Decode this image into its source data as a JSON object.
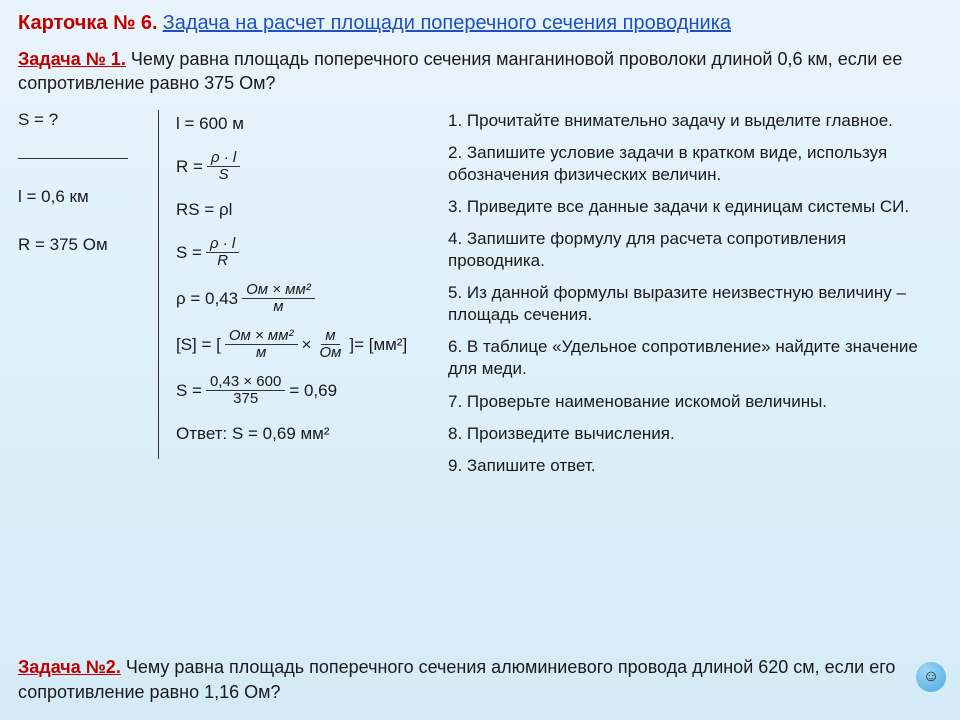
{
  "header": {
    "card_label": "Карточка № 6.",
    "subtitle": "Задача на расчет площади поперечного сечения проводника"
  },
  "task1": {
    "label": "Задача № 1.",
    "text": "Чему равна площадь поперечного сечения манганиновой проволоки длиной 0,6 км, если ее сопротивление равно 375 Ом?"
  },
  "given": {
    "s_unknown": "S = ?",
    "l": "l = 0,6 км",
    "r": "R = 375 Ом"
  },
  "solution": {
    "l_conv": "l = 600 м",
    "r_eq": "R =",
    "r_frac_num": "ρ · l",
    "r_frac_den": "S",
    "rs_eq": "RS = ρl",
    "s_eq": "S =",
    "s_frac_num": "ρ · l",
    "s_frac_den": "R",
    "rho": "ρ = 0,43",
    "rho_unit_num": "Ом × мм²",
    "rho_unit_den": "м",
    "dim_open": "[S] = [",
    "dim_f1_num": "Ом × мм²",
    "dim_f1_den": "м",
    "dim_times": "×",
    "dim_f2_num": "м",
    "dim_f2_den": "Ом",
    "dim_close": "]= [мм²]",
    "calc_eq": "S =",
    "calc_num": "0,43 × 600",
    "calc_den": "375",
    "calc_res": "= 0,69",
    "answer": "Ответ: S = 0,69 мм²"
  },
  "steps": {
    "s1": "1. Прочитайте внимательно задачу и выделите главное.",
    "s2": "2. Запишите условие задачи в кратком виде, используя обозначения физических величин.",
    "s3": "3. Приведите все данные задачи к единицам системы СИ.",
    "s4": "4. Запишите формулу для расчета сопротивления проводника.",
    "s5": "5. Из данной формулы выразите неизвестную величину – площадь сечения.",
    "s6": "6. В таблице «Удельное сопротивление» найдите значение для меди.",
    "s7": "7. Проверьте наименование искомой величины.",
    "s8": "8. Произведите вычисления.",
    "s9": "9. Запишите ответ."
  },
  "task2": {
    "label": "Задача №2.",
    "text": "Чему равна площадь поперечного сечения алюминиевого провода длиной 620 см, если его сопротивление равно 1,16 Ом?"
  },
  "colors": {
    "accent_red": "#c00000",
    "accent_blue": "#2050c0",
    "bg_top": "#e8f4fb",
    "bg_bottom": "#d4ebf7"
  }
}
